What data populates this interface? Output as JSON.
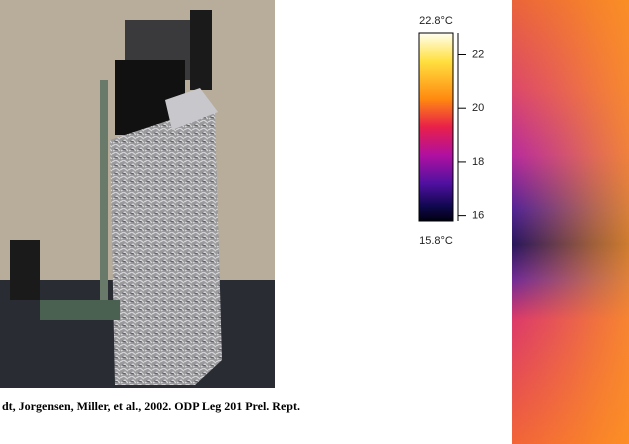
{
  "colorbar": {
    "max": {
      "value": 22.8,
      "label": "22.8°C"
    },
    "min": {
      "value": 15.8,
      "label": "15.8°C"
    },
    "ticks": [
      16,
      18,
      20,
      22
    ]
  },
  "caption": "dt, Jorgensen, Miller, et al., 2002. ODP Leg 201 Prel. Rept."
}
